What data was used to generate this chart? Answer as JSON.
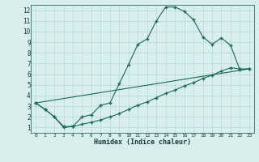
{
  "xlabel": "Humidex (Indice chaleur)",
  "bg_color": "#d8efee",
  "grid_color": "#b8d8d8",
  "line_color": "#1a6b5a",
  "xlim": [
    -0.5,
    23.5
  ],
  "ylim": [
    0.5,
    12.5
  ],
  "yticks": [
    1,
    2,
    3,
    4,
    5,
    6,
    7,
    8,
    9,
    10,
    11,
    12
  ],
  "xticks": [
    0,
    1,
    2,
    3,
    4,
    5,
    6,
    7,
    8,
    9,
    10,
    11,
    12,
    13,
    14,
    15,
    16,
    17,
    18,
    19,
    20,
    21,
    22,
    23
  ],
  "line1_x": [
    0,
    1,
    2,
    3,
    4,
    5,
    6,
    7,
    8,
    9,
    10,
    11,
    12,
    13,
    14,
    15,
    16,
    17,
    18,
    19,
    20,
    21,
    22,
    23
  ],
  "line1_y": [
    3.3,
    2.7,
    2.0,
    1.0,
    1.1,
    2.0,
    2.2,
    3.1,
    3.3,
    5.1,
    6.9,
    8.8,
    9.3,
    11.0,
    12.3,
    12.3,
    11.9,
    11.1,
    9.5,
    8.8,
    9.4,
    8.7,
    6.4,
    6.5
  ],
  "line2_x": [
    0,
    1,
    2,
    3,
    4,
    5,
    6,
    7,
    8,
    9,
    10,
    11,
    12,
    13,
    14,
    15,
    16,
    17,
    18,
    19,
    20,
    21,
    22,
    23
  ],
  "line2_y": [
    3.3,
    2.7,
    2.0,
    1.1,
    1.1,
    1.3,
    1.5,
    1.7,
    2.0,
    2.3,
    2.7,
    3.1,
    3.4,
    3.8,
    4.2,
    4.5,
    4.9,
    5.2,
    5.6,
    5.9,
    6.3,
    6.6,
    6.5,
    6.5
  ],
  "line3_x": [
    0,
    23
  ],
  "line3_y": [
    3.3,
    6.5
  ]
}
